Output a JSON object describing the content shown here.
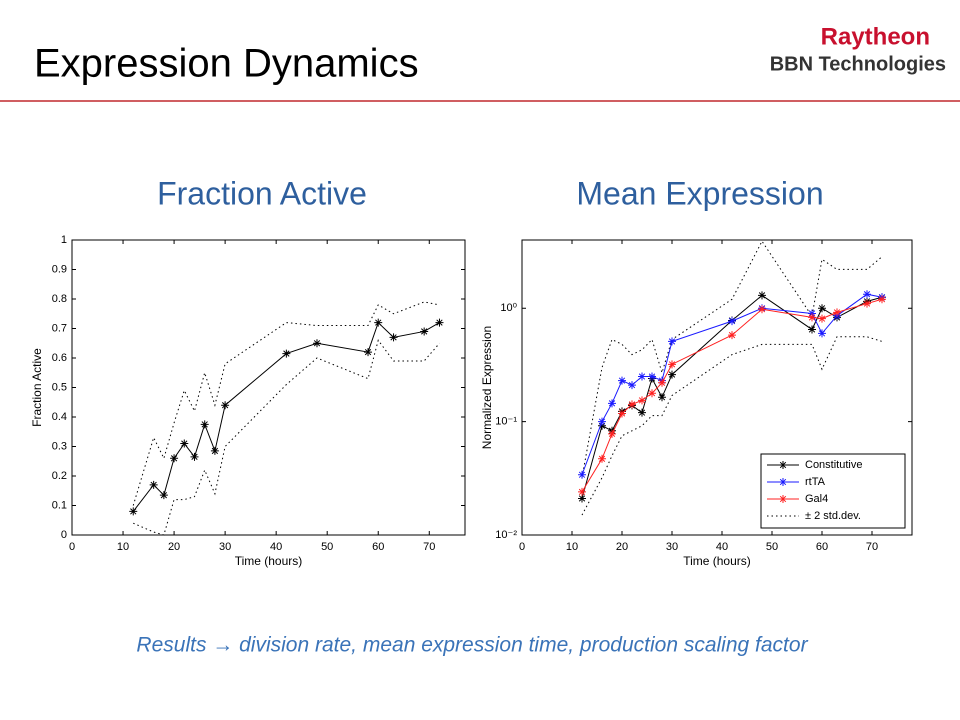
{
  "title": "Expression Dynamics",
  "logo": {
    "line1": "Raytheon",
    "line2": "BBN Technologies"
  },
  "footer": "Results → division rate, mean expression time, production scaling factor",
  "chart_data": [
    {
      "type": "line",
      "title": "Fraction Active",
      "xlabel": "Time (hours)",
      "ylabel": "Fraction Active",
      "x": [
        12,
        16,
        18,
        20,
        22,
        24,
        26,
        28,
        30,
        42,
        48,
        58,
        60,
        63,
        69,
        72
      ],
      "xlim": [
        0,
        77
      ],
      "xticks": [
        0,
        10,
        20,
        30,
        40,
        50,
        60,
        70
      ],
      "ylim": [
        0,
        1
      ],
      "yticks": [
        0,
        0.1,
        0.2,
        0.3,
        0.4,
        0.5,
        0.6,
        0.7,
        0.8,
        0.9,
        1
      ],
      "log_y": false,
      "series": [
        {
          "color": "#000000",
          "values": [
            0.08,
            0.17,
            0.135,
            0.26,
            0.31,
            0.265,
            0.375,
            0.285,
            0.44,
            0.615,
            0.65,
            0.62,
            0.72,
            0.67,
            0.69,
            0.72
          ]
        }
      ],
      "band": {
        "color": "#000000",
        "upper": [
          0.1,
          0.33,
          0.26,
          0.38,
          0.49,
          0.42,
          0.55,
          0.44,
          0.58,
          0.72,
          0.71,
          0.71,
          0.78,
          0.75,
          0.79,
          0.78
        ],
        "lower": [
          0.04,
          0.01,
          0.0,
          0.12,
          0.12,
          0.13,
          0.22,
          0.14,
          0.3,
          0.51,
          0.6,
          0.53,
          0.66,
          0.59,
          0.59,
          0.65
        ]
      }
    },
    {
      "type": "line",
      "title": "Mean Expression",
      "xlabel": "Time (hours)",
      "ylabel": "Normalized Expression",
      "x": [
        12,
        16,
        18,
        20,
        22,
        24,
        26,
        28,
        30,
        42,
        48,
        58,
        60,
        63,
        69,
        72
      ],
      "xlim": [
        0,
        78
      ],
      "xticks": [
        0,
        10,
        20,
        30,
        40,
        50,
        60,
        70
      ],
      "ylim": [
        0.01,
        4
      ],
      "yticks": [
        {
          "value": 0.01,
          "label": "10⁻²"
        },
        {
          "value": 0.1,
          "label": "10⁻¹"
        },
        {
          "value": 1,
          "label": "10⁰"
        }
      ],
      "log_y": true,
      "legend": "lower right",
      "series": [
        {
          "name": "Constitutive",
          "color": "#000000",
          "values": [
            0.021,
            0.092,
            0.083,
            0.123,
            0.139,
            0.12,
            0.24,
            0.164,
            0.26,
            0.78,
            1.3,
            0.65,
            1.0,
            0.83,
            1.15,
            1.25
          ]
        },
        {
          "name": "rtTA",
          "color": "#1a1aff",
          "values": [
            0.034,
            0.1,
            0.145,
            0.23,
            0.21,
            0.25,
            0.25,
            0.23,
            0.51,
            0.77,
            1.0,
            0.9,
            0.6,
            0.86,
            1.33,
            1.25
          ]
        },
        {
          "name": "Gal4",
          "color": "#ff2020",
          "values": [
            0.024,
            0.047,
            0.078,
            0.118,
            0.142,
            0.154,
            0.178,
            0.22,
            0.32,
            0.58,
            0.98,
            0.83,
            0.81,
            0.92,
            1.1,
            1.2
          ]
        }
      ],
      "band": {
        "name": "± 2 std.dev.",
        "color": "#000000",
        "upper": [
          0.032,
          0.3,
          0.53,
          0.48,
          0.39,
          0.43,
          0.53,
          0.27,
          0.53,
          1.2,
          3.9,
          0.85,
          2.7,
          2.2,
          2.2,
          2.85
        ],
        "lower": [
          0.015,
          0.032,
          0.05,
          0.075,
          0.083,
          0.092,
          0.113,
          0.113,
          0.17,
          0.39,
          0.48,
          0.48,
          0.29,
          0.56,
          0.56,
          0.51
        ]
      }
    }
  ]
}
